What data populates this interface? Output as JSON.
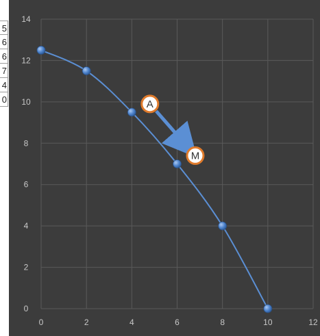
{
  "table_fragment": [
    "5",
    "6",
    "6",
    "7",
    "4",
    "0"
  ],
  "chart_data": {
    "type": "scatter",
    "title": "",
    "xlabel": "",
    "ylabel": "",
    "xlim": [
      0,
      12
    ],
    "ylim": [
      0,
      14
    ],
    "grid": true,
    "x_ticks": [
      "0",
      "2",
      "4",
      "6",
      "8",
      "10",
      "12"
    ],
    "y_ticks": [
      "0",
      "2",
      "4",
      "6",
      "8",
      "10",
      "12",
      "14"
    ],
    "series": [
      {
        "x": [
          0,
          2,
          4,
          6,
          8,
          10
        ],
        "y": [
          12.5,
          11.5,
          9.5,
          7,
          4,
          0
        ],
        "smooth": true
      }
    ],
    "annotations": [
      {
        "label": "A",
        "x": 4.8,
        "y": 9.9
      },
      {
        "label": "M",
        "x": 6.8,
        "y": 7.4
      }
    ],
    "arrow": {
      "from": "A",
      "to": "M"
    },
    "colors": {
      "background": "#3c3c3c",
      "grid": "#5a5a5a",
      "series": "#5b8fd4",
      "axis_text": "#c8c8c8",
      "marker_fill": "#ffffff",
      "marker_border": "#e07b2c"
    }
  }
}
